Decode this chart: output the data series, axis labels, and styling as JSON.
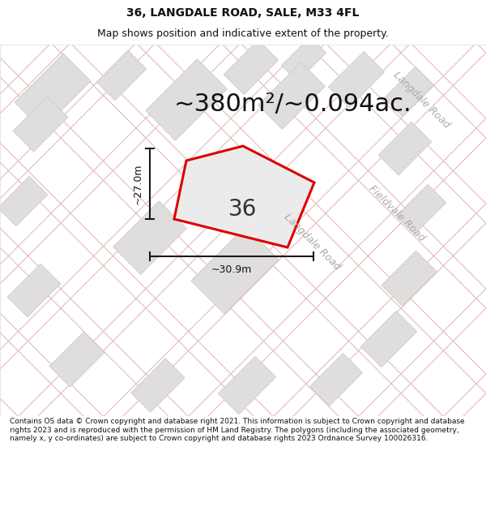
{
  "title_line1": "36, LANGDALE ROAD, SALE, M33 4FL",
  "title_line2": "Map shows position and indicative extent of the property.",
  "area_text": "~380m²/~0.094ac.",
  "dim_width": "~30.9m",
  "dim_height": "~27.0m",
  "property_number": "36",
  "footer_text": "Contains OS data © Crown copyright and database right 2021. This information is subject to Crown copyright and database rights 2023 and is reproduced with the permission of HM Land Registry. The polygons (including the associated geometry, namely x, y co-ordinates) are subject to Crown copyright and database rights 2023 Ordnance Survey 100026316.",
  "map_bg": "#f7f5f5",
  "road_line_color": "#e8b8b8",
  "building_color": "#e0dddd",
  "building_edge": "#cccccc",
  "plot_outline_color": "#dd0000",
  "plot_fill_color": "#e8e5e5",
  "dim_line_color": "#1a1a1a",
  "road_label_color": "#aaaaaa",
  "title_fontsize": 10,
  "subtitle_fontsize": 9,
  "area_fontsize": 22,
  "dim_fontsize": 9,
  "number_fontsize": 20,
  "road_label_fontsize": 9
}
